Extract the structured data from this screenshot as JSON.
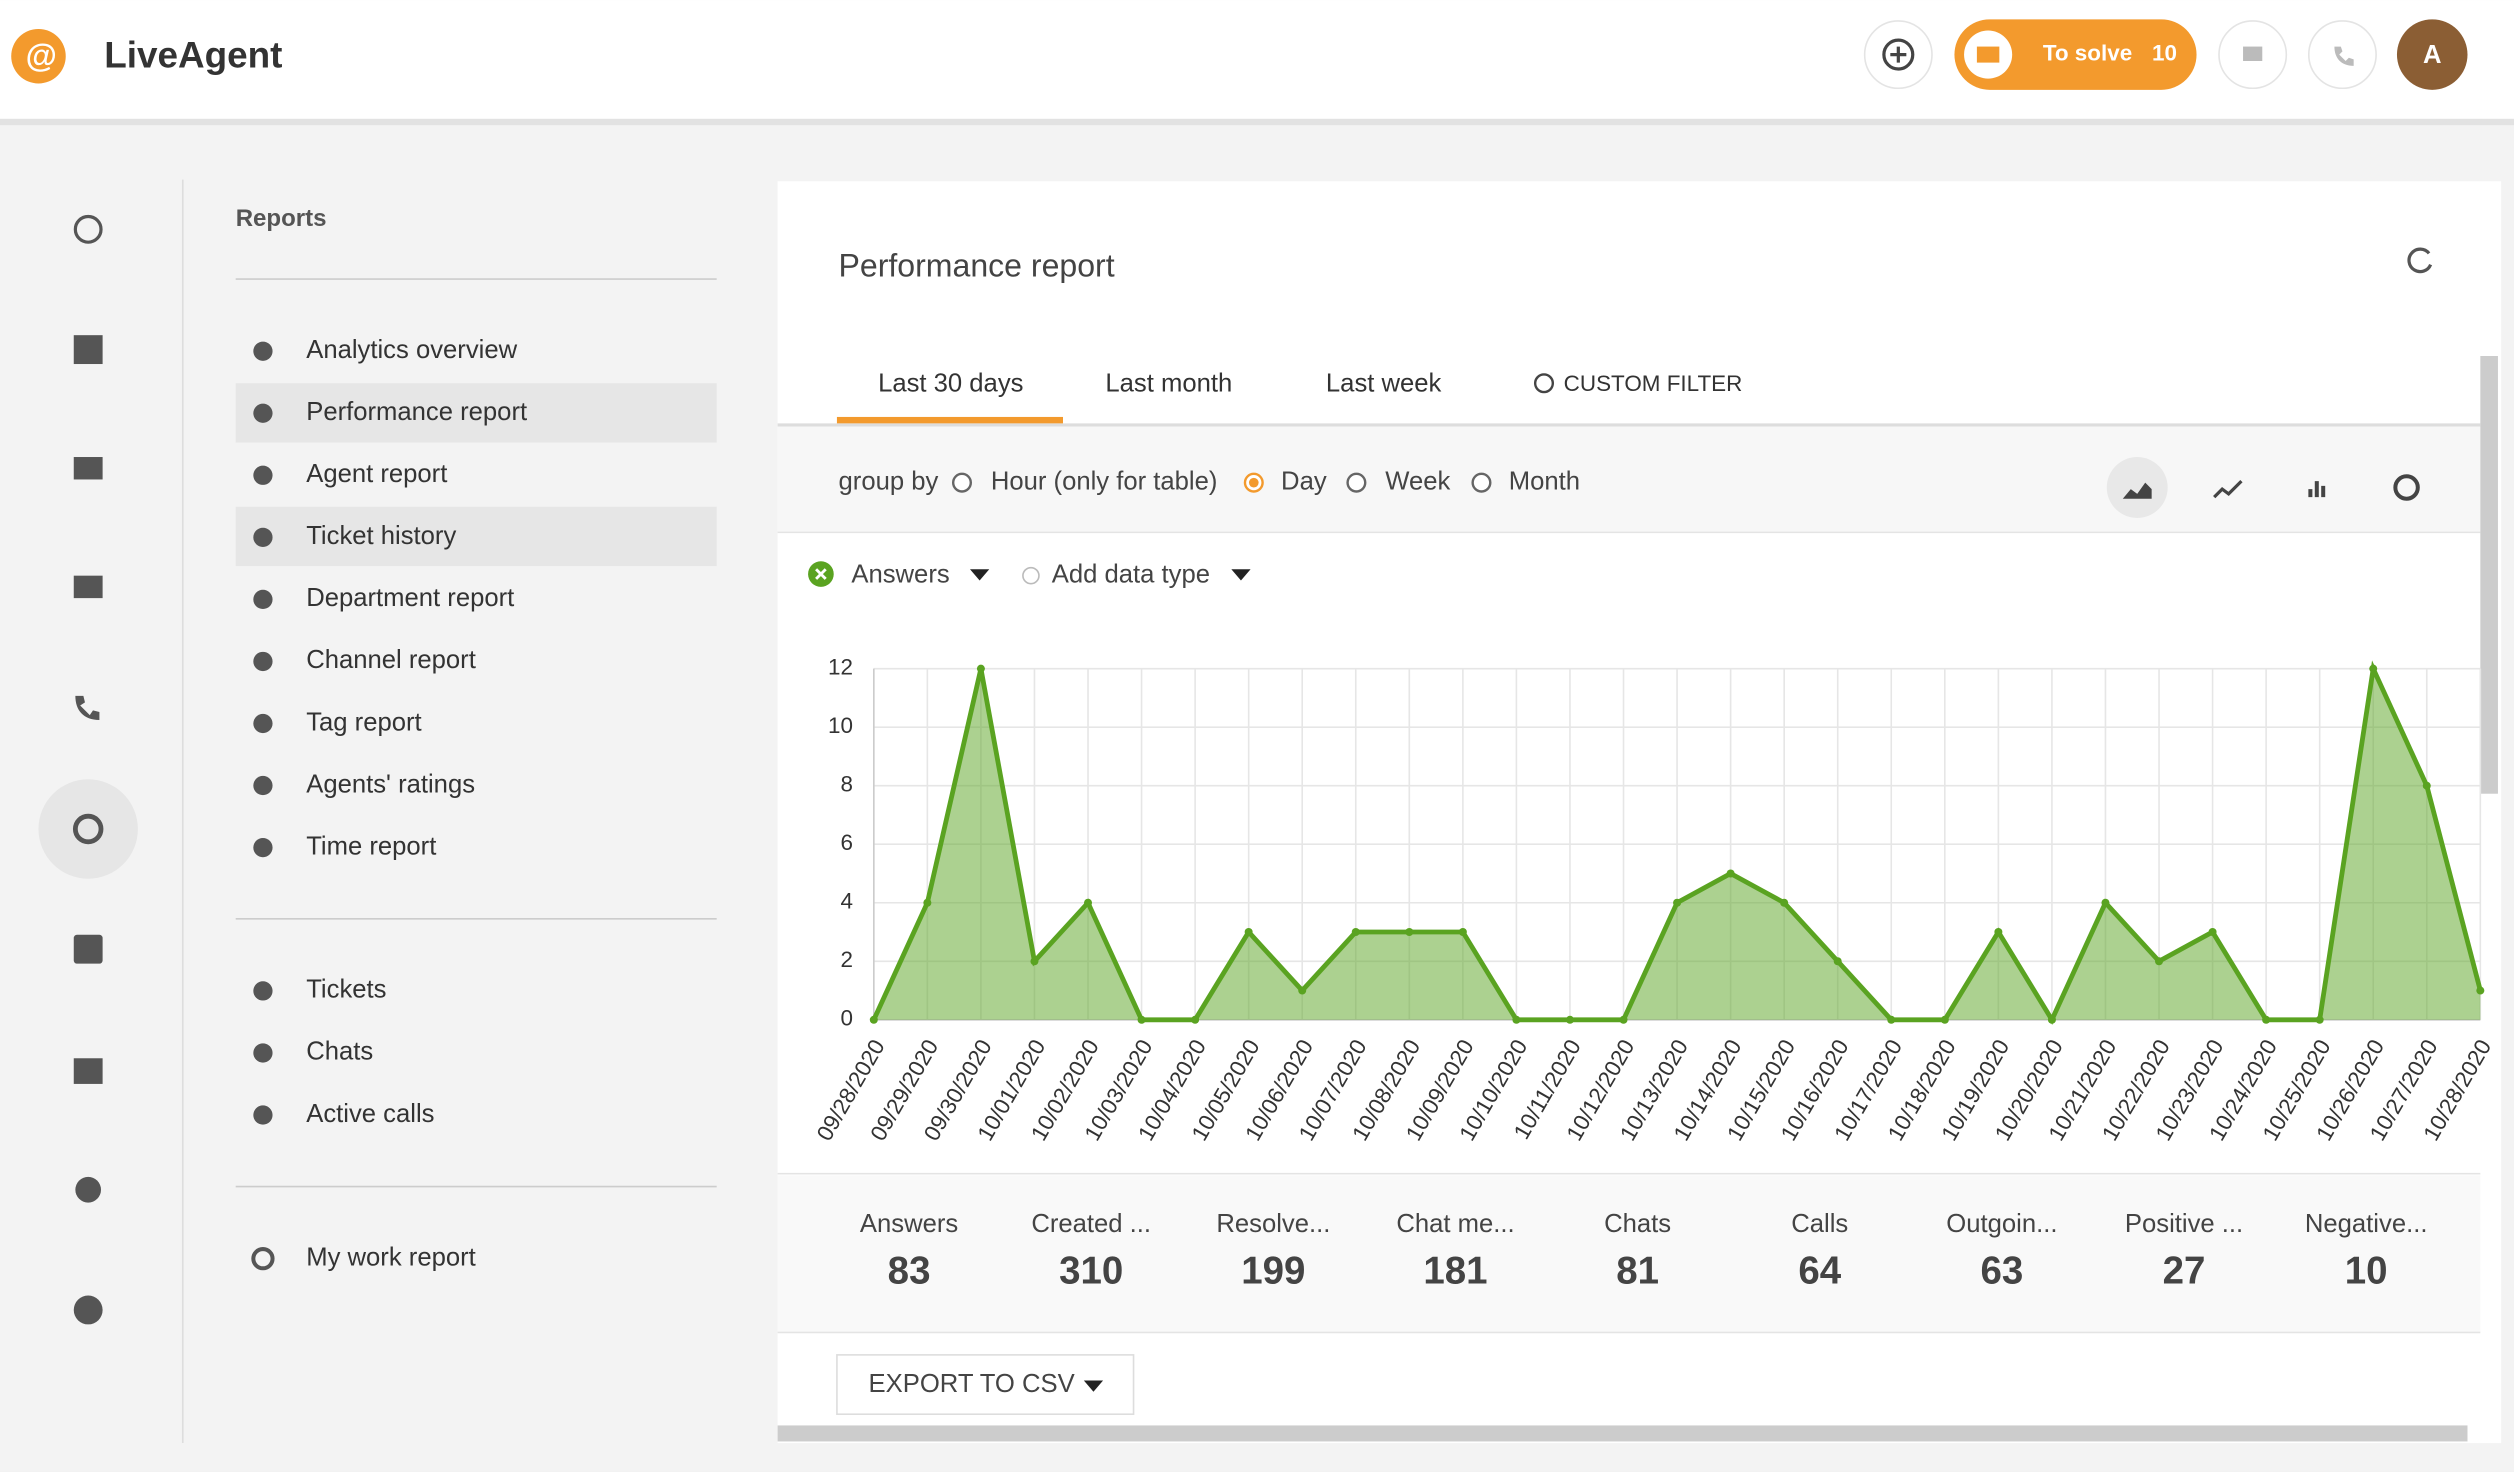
{
  "header": {
    "logo": "LiveAgent",
    "to_solve_label": "To solve",
    "to_solve_count": 10,
    "avatar": "A"
  },
  "sidebar": {
    "title": "Reports",
    "reports": [
      "Analytics overview",
      "Performance report",
      "Agent report",
      "Ticket history",
      "Department report",
      "Channel report",
      "Tag report",
      "Agents' ratings",
      "Time report"
    ],
    "lists": [
      "Tickets",
      "Chats",
      "Active calls"
    ],
    "my_work": "My work report"
  },
  "report": {
    "title": "Performance report",
    "tabs": [
      "Last 30 days",
      "Last month",
      "Last week",
      "CUSTOM FILTER"
    ],
    "group_by_label": "group by",
    "group_options": [
      "Hour (only for table)",
      "Day",
      "Week",
      "Month"
    ],
    "add_data_type": "Add data type",
    "stats": [
      {
        "label": "Answers",
        "value": 83
      },
      {
        "label": "Created ...",
        "value": 310
      },
      {
        "label": "Resolve...",
        "value": 199
      },
      {
        "label": "Chat me...",
        "value": 181
      },
      {
        "label": "Chats",
        "value": 81
      },
      {
        "label": "Calls",
        "value": 64
      },
      {
        "label": "Outgoin...",
        "value": 63
      },
      {
        "label": "Positive ...",
        "value": 27
      },
      {
        "label": "Negative...",
        "value": 10
      }
    ],
    "export": "EXPORT TO CSV"
  },
  "chart_data": {
    "type": "area",
    "x": [
      "09/28/2020",
      "09/29/2020",
      "09/30/2020",
      "10/01/2020",
      "10/02/2020",
      "10/03/2020",
      "10/04/2020",
      "10/05/2020",
      "10/06/2020",
      "10/07/2020",
      "10/08/2020",
      "10/09/2020",
      "10/10/2020",
      "10/11/2020",
      "10/12/2020",
      "10/13/2020",
      "10/14/2020",
      "10/15/2020",
      "10/16/2020",
      "10/17/2020",
      "10/18/2020",
      "10/19/2020",
      "10/20/2020",
      "10/21/2020",
      "10/22/2020",
      "10/23/2020",
      "10/24/2020",
      "10/25/2020",
      "10/26/2020",
      "10/27/2020",
      "10/28/2020"
    ],
    "series": [
      {
        "name": "Answers",
        "color": "#5aa321",
        "values": [
          0,
          4,
          12,
          2,
          4,
          0,
          0,
          3,
          1,
          3,
          3,
          3,
          0,
          0,
          0,
          4,
          5,
          4,
          2,
          0,
          0,
          3,
          0,
          4,
          2,
          3,
          0,
          0,
          12,
          8,
          1
        ]
      }
    ],
    "ylim": [
      0,
      12
    ],
    "yticks": [
      0,
      2,
      4,
      6,
      8,
      10,
      12
    ],
    "grid": true
  }
}
